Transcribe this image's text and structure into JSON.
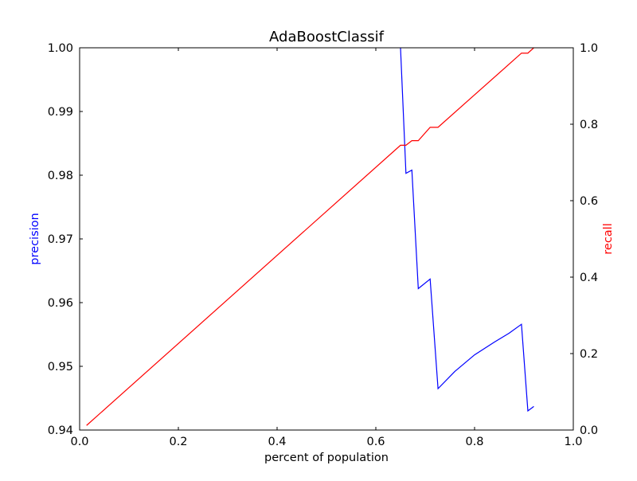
{
  "chart_data": {
    "type": "line",
    "title": "AdaBoostClassif",
    "xlabel": "percent of population",
    "ylabel": "precision",
    "y2label": "recall",
    "xlim": [
      0.0,
      1.0
    ],
    "ylim": [
      0.94,
      1.0
    ],
    "y2lim": [
      0.0,
      1.0
    ],
    "x_ticks": [
      "0.0",
      "0.2",
      "0.4",
      "0.6",
      "0.8",
      "1.0"
    ],
    "y_ticks": [
      "0.94",
      "0.95",
      "0.96",
      "0.97",
      "0.98",
      "0.99",
      "1.00"
    ],
    "y2_ticks": [
      "0.0",
      "0.2",
      "0.4",
      "0.6",
      "0.8",
      "1.0"
    ],
    "grid": false,
    "colors": {
      "precision": "#0000ff",
      "recall": "#ff0000"
    },
    "series": [
      {
        "axis": "left",
        "color": "#0000ff",
        "points": [
          [
            0.65,
            1.0
          ],
          [
            0.661,
            0.9803
          ],
          [
            0.673,
            0.9808
          ],
          [
            0.686,
            0.9622
          ],
          [
            0.71,
            0.9637
          ],
          [
            0.726,
            0.9465
          ],
          [
            0.76,
            0.9492
          ],
          [
            0.8,
            0.9518
          ],
          [
            0.84,
            0.9538
          ],
          [
            0.87,
            0.9552
          ],
          [
            0.895,
            0.9566
          ],
          [
            0.908,
            0.943
          ],
          [
            0.92,
            0.9437
          ]
        ]
      },
      {
        "axis": "right",
        "color": "#ff0000",
        "points": [
          [
            0.014,
            0.012
          ],
          [
            0.65,
            0.745
          ],
          [
            0.661,
            0.745
          ],
          [
            0.673,
            0.757
          ],
          [
            0.686,
            0.757
          ],
          [
            0.71,
            0.792
          ],
          [
            0.726,
            0.792
          ],
          [
            0.895,
            0.986
          ],
          [
            0.908,
            0.986
          ],
          [
            0.92,
            1.0
          ]
        ]
      }
    ]
  }
}
